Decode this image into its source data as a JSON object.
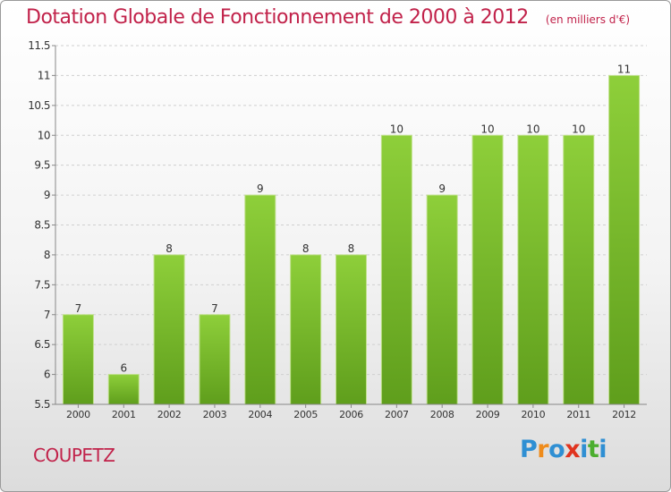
{
  "header": {
    "title": "Dotation Globale de Fonctionnement de 2000 à 2012",
    "unit": "(en milliers d'€)"
  },
  "footer": {
    "commune": "COUPETZ",
    "logo": {
      "p": "P",
      "r": "r",
      "o": "o",
      "x": "x",
      "i1": "i",
      "t": "t",
      "i2": "i"
    }
  },
  "colors": {
    "title": "#c1224a",
    "bar_top": "#8ecf3a",
    "bar_bottom": "#5f9e1c",
    "grid": "#cfcfcf",
    "axis": "#888888",
    "label": "#333333"
  },
  "chart_data": {
    "type": "bar",
    "title": "Dotation Globale de Fonctionnement de 2000 à 2012",
    "xlabel": "",
    "ylabel": "",
    "categories": [
      "2000",
      "2001",
      "2002",
      "2003",
      "2004",
      "2005",
      "2006",
      "2007",
      "2008",
      "2009",
      "2010",
      "2011",
      "2012"
    ],
    "values": [
      7,
      6,
      8,
      7,
      9,
      8,
      8,
      10,
      9,
      10,
      10,
      10,
      11
    ],
    "value_labels": [
      "7",
      "6",
      "8",
      "7",
      "9",
      "8",
      "8",
      "10",
      "9",
      "10",
      "10",
      "10",
      "11"
    ],
    "ylim": [
      5.5,
      11.5
    ],
    "yticks": [
      5.5,
      6,
      6.5,
      7,
      7.5,
      8,
      8.5,
      9,
      9.5,
      10,
      10.5,
      11,
      11.5
    ],
    "ytick_labels": [
      "5.5",
      "6",
      "6.5",
      "7",
      "7.5",
      "8",
      "8.5",
      "9",
      "9.5",
      "10",
      "10.5",
      "11",
      "11.5"
    ],
    "grid": true
  }
}
